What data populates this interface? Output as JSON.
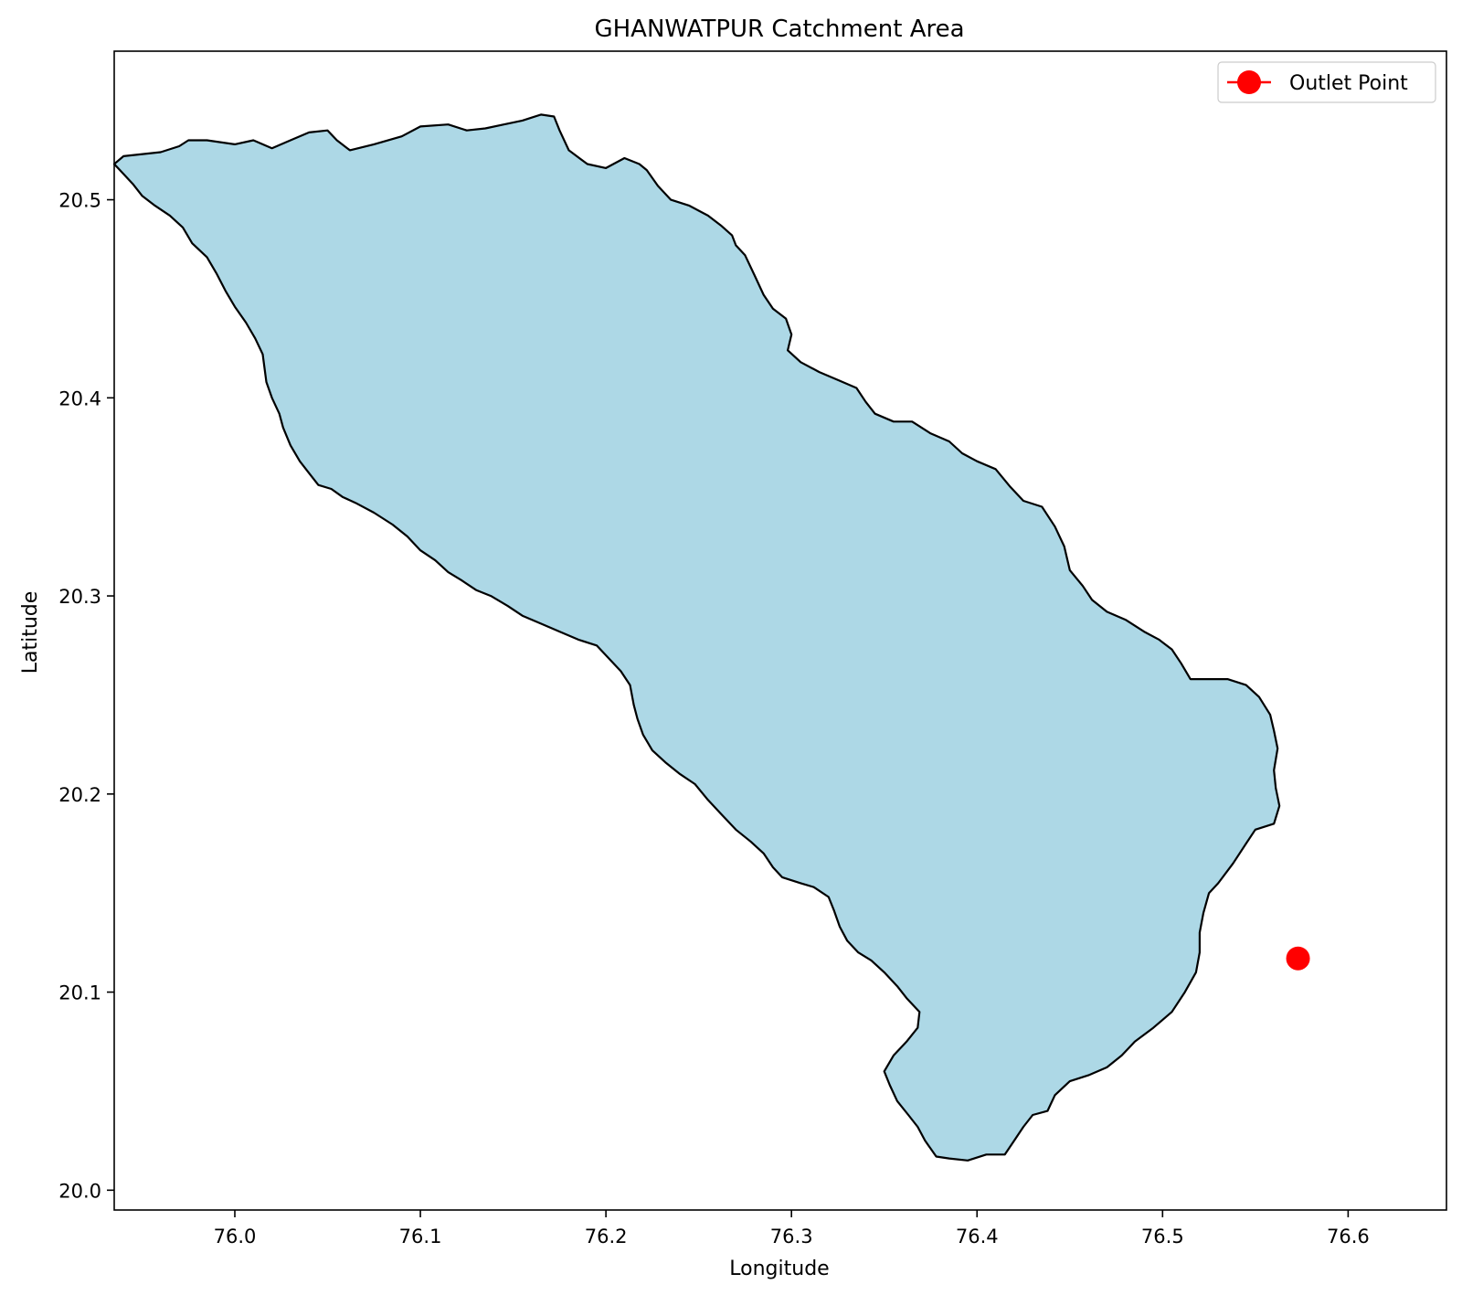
{
  "chart_data": {
    "type": "map",
    "title": "GHANWATPUR Catchment Area",
    "xlabel": "Longitude",
    "ylabel": "Latitude",
    "xlim": [
      75.935,
      76.653
    ],
    "ylim": [
      19.99,
      20.575
    ],
    "xticks": [
      76.0,
      76.1,
      76.2,
      76.3,
      76.4,
      76.5,
      76.6
    ],
    "xtick_labels": [
      "76.0",
      "76.1",
      "76.2",
      "76.3",
      "76.4",
      "76.5",
      "76.6"
    ],
    "yticks": [
      20.0,
      20.1,
      20.2,
      20.3,
      20.4,
      20.5
    ],
    "ytick_labels": [
      "20.0",
      "20.1",
      "20.2",
      "20.3",
      "20.4",
      "20.5"
    ],
    "grid": false,
    "legend": {
      "position": "top-right",
      "entries": [
        {
          "label": "Outlet Point",
          "color": "#ff0000"
        }
      ]
    },
    "catchment": {
      "fill": "#add8e6",
      "edge": "#000000",
      "boundary": [
        [
          75.97,
          20.527
        ],
        [
          75.975,
          20.53
        ],
        [
          75.985,
          20.53
        ],
        [
          76.0,
          20.528
        ],
        [
          76.01,
          20.53
        ],
        [
          76.02,
          20.526
        ],
        [
          76.03,
          20.53
        ],
        [
          76.04,
          20.534
        ],
        [
          76.05,
          20.535
        ],
        [
          76.055,
          20.53
        ],
        [
          76.062,
          20.525
        ],
        [
          76.075,
          20.528
        ],
        [
          76.09,
          20.532
        ],
        [
          76.1,
          20.537
        ],
        [
          76.115,
          20.538
        ],
        [
          76.125,
          20.535
        ],
        [
          76.135,
          20.536
        ],
        [
          76.145,
          20.538
        ],
        [
          76.155,
          20.54
        ],
        [
          76.165,
          20.543
        ],
        [
          76.172,
          20.542
        ],
        [
          76.175,
          20.535
        ],
        [
          76.18,
          20.525
        ],
        [
          76.19,
          20.518
        ],
        [
          76.2,
          20.516
        ],
        [
          76.21,
          20.521
        ],
        [
          76.218,
          20.518
        ],
        [
          76.222,
          20.515
        ],
        [
          76.228,
          20.507
        ],
        [
          76.235,
          20.5
        ],
        [
          76.245,
          20.497
        ],
        [
          76.255,
          20.492
        ],
        [
          76.262,
          20.487
        ],
        [
          76.268,
          20.482
        ],
        [
          76.27,
          20.477
        ],
        [
          76.275,
          20.472
        ],
        [
          76.28,
          20.462
        ],
        [
          76.285,
          20.452
        ],
        [
          76.29,
          20.445
        ],
        [
          76.297,
          20.44
        ],
        [
          76.3,
          20.432
        ],
        [
          76.298,
          20.424
        ],
        [
          76.305,
          20.418
        ],
        [
          76.315,
          20.413
        ],
        [
          76.325,
          20.409
        ],
        [
          76.335,
          20.405
        ],
        [
          76.34,
          20.398
        ],
        [
          76.345,
          20.392
        ],
        [
          76.355,
          20.388
        ],
        [
          76.365,
          20.388
        ],
        [
          76.375,
          20.382
        ],
        [
          76.385,
          20.378
        ],
        [
          76.392,
          20.372
        ],
        [
          76.4,
          20.368
        ],
        [
          76.41,
          20.364
        ],
        [
          76.418,
          20.355
        ],
        [
          76.425,
          20.348
        ],
        [
          76.435,
          20.345
        ],
        [
          76.442,
          20.335
        ],
        [
          76.447,
          20.325
        ],
        [
          76.45,
          20.313
        ],
        [
          76.457,
          20.305
        ],
        [
          76.462,
          20.298
        ],
        [
          76.47,
          20.292
        ],
        [
          76.48,
          20.288
        ],
        [
          76.49,
          20.282
        ],
        [
          76.498,
          20.278
        ],
        [
          76.505,
          20.273
        ],
        [
          76.51,
          20.266
        ],
        [
          76.515,
          20.258
        ],
        [
          76.525,
          20.258
        ],
        [
          76.535,
          20.258
        ],
        [
          76.545,
          20.255
        ],
        [
          76.552,
          20.249
        ],
        [
          76.558,
          20.24
        ],
        [
          76.56,
          20.232
        ],
        [
          76.562,
          20.223
        ],
        [
          76.56,
          20.212
        ],
        [
          76.561,
          20.203
        ],
        [
          76.563,
          20.194
        ],
        [
          76.56,
          20.185
        ],
        [
          76.55,
          20.182
        ],
        [
          76.545,
          20.175
        ],
        [
          76.538,
          20.165
        ],
        [
          76.53,
          20.155
        ],
        [
          76.525,
          20.15
        ],
        [
          76.522,
          20.14
        ],
        [
          76.52,
          20.13
        ],
        [
          76.52,
          20.12
        ],
        [
          76.518,
          20.11
        ],
        [
          76.512,
          20.1
        ],
        [
          76.505,
          20.09
        ],
        [
          76.495,
          20.082
        ],
        [
          76.485,
          20.075
        ],
        [
          76.478,
          20.068
        ],
        [
          76.47,
          20.062
        ],
        [
          76.46,
          20.058
        ],
        [
          76.45,
          20.055
        ],
        [
          76.442,
          20.048
        ],
        [
          76.438,
          20.04
        ],
        [
          76.43,
          20.038
        ],
        [
          76.425,
          20.032
        ],
        [
          76.42,
          20.025
        ],
        [
          76.415,
          20.018
        ],
        [
          76.405,
          20.018
        ],
        [
          76.395,
          20.015
        ],
        [
          76.385,
          20.016
        ],
        [
          76.378,
          20.017
        ],
        [
          76.372,
          20.025
        ],
        [
          76.368,
          20.032
        ],
        [
          76.363,
          20.038
        ],
        [
          76.357,
          20.045
        ],
        [
          76.353,
          20.053
        ],
        [
          76.35,
          20.06
        ],
        [
          76.355,
          20.068
        ],
        [
          76.362,
          20.075
        ],
        [
          76.368,
          20.082
        ],
        [
          76.369,
          20.09
        ],
        [
          76.362,
          20.097
        ],
        [
          76.357,
          20.103
        ],
        [
          76.35,
          20.11
        ],
        [
          76.343,
          20.116
        ],
        [
          76.336,
          20.12
        ],
        [
          76.33,
          20.126
        ],
        [
          76.326,
          20.133
        ],
        [
          76.323,
          20.141
        ],
        [
          76.32,
          20.148
        ],
        [
          76.312,
          20.153
        ],
        [
          76.305,
          20.155
        ],
        [
          76.295,
          20.158
        ],
        [
          76.29,
          20.163
        ],
        [
          76.285,
          20.17
        ],
        [
          76.278,
          20.176
        ],
        [
          76.27,
          20.182
        ],
        [
          76.262,
          20.19
        ],
        [
          76.255,
          20.197
        ],
        [
          76.248,
          20.205
        ],
        [
          76.24,
          20.21
        ],
        [
          76.232,
          20.216
        ],
        [
          76.225,
          20.222
        ],
        [
          76.22,
          20.23
        ],
        [
          76.217,
          20.238
        ],
        [
          76.215,
          20.245
        ],
        [
          76.213,
          20.255
        ],
        [
          76.208,
          20.262
        ],
        [
          76.202,
          20.268
        ],
        [
          76.195,
          20.275
        ],
        [
          76.185,
          20.278
        ],
        [
          76.175,
          20.282
        ],
        [
          76.165,
          20.286
        ],
        [
          76.155,
          20.29
        ],
        [
          76.147,
          20.295
        ],
        [
          76.138,
          20.3
        ],
        [
          76.13,
          20.303
        ],
        [
          76.122,
          20.308
        ],
        [
          76.115,
          20.312
        ],
        [
          76.108,
          20.318
        ],
        [
          76.1,
          20.323
        ],
        [
          76.093,
          20.33
        ],
        [
          76.085,
          20.336
        ],
        [
          76.075,
          20.342
        ],
        [
          76.065,
          20.347
        ],
        [
          76.058,
          20.35
        ],
        [
          76.052,
          20.354
        ],
        [
          76.045,
          20.356
        ],
        [
          76.04,
          20.362
        ],
        [
          76.035,
          20.368
        ],
        [
          76.03,
          20.376
        ],
        [
          76.026,
          20.385
        ],
        [
          76.024,
          20.392
        ],
        [
          76.02,
          20.4
        ],
        [
          76.017,
          20.408
        ],
        [
          76.016,
          20.415
        ],
        [
          76.015,
          20.422
        ],
        [
          76.011,
          20.43
        ],
        [
          76.006,
          20.438
        ],
        [
          76.0,
          20.446
        ],
        [
          75.995,
          20.454
        ],
        [
          75.99,
          20.463
        ],
        [
          75.985,
          20.471
        ],
        [
          75.977,
          20.478
        ],
        [
          75.972,
          20.486
        ],
        [
          75.965,
          20.492
        ],
        [
          75.957,
          20.497
        ],
        [
          75.95,
          20.502
        ],
        [
          75.945,
          20.508
        ],
        [
          75.94,
          20.513
        ],
        [
          75.935,
          20.518
        ],
        [
          75.94,
          20.522
        ],
        [
          75.96,
          20.524
        ],
        [
          75.97,
          20.527
        ]
      ]
    },
    "outlet": {
      "label": "Outlet Point",
      "lon": 76.573,
      "lat": 20.117,
      "color": "#ff0000"
    }
  }
}
